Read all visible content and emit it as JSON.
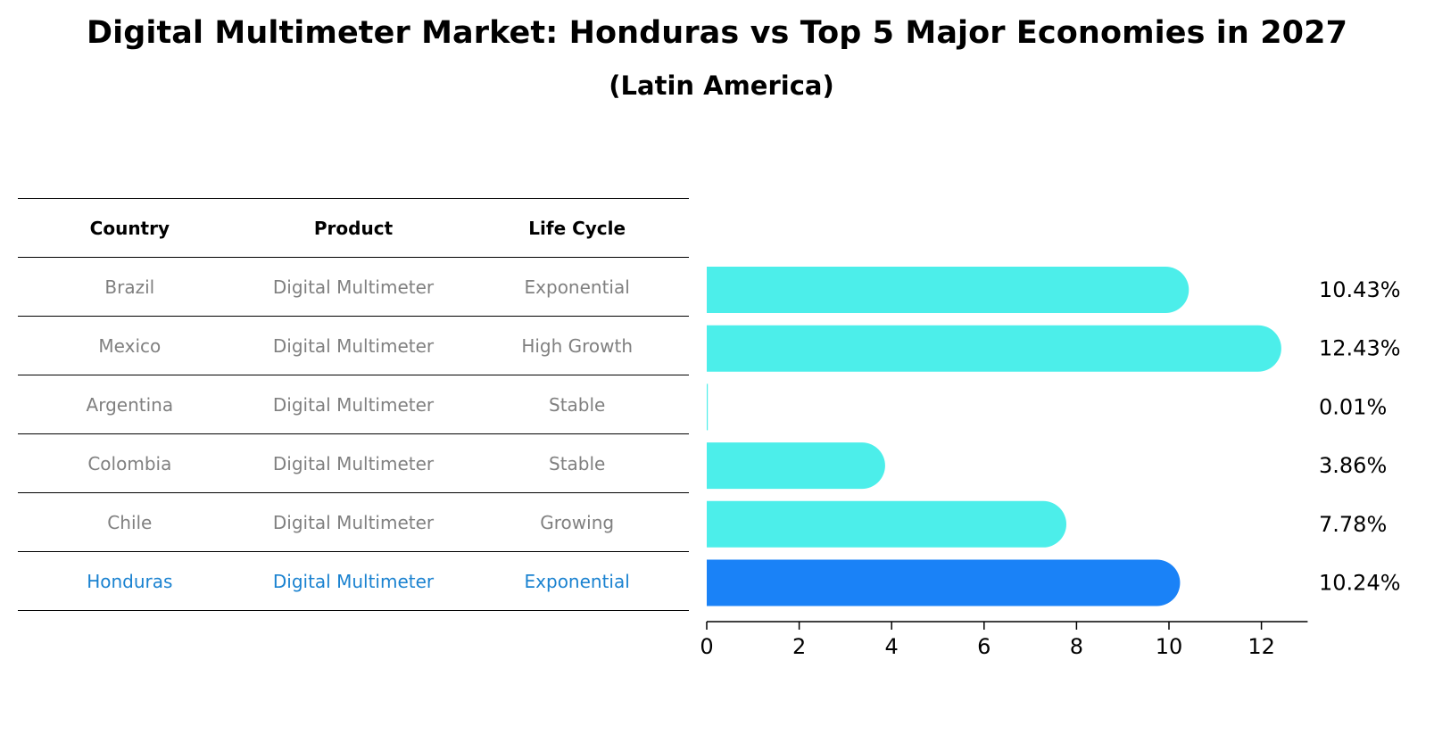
{
  "title": "Digital Multimeter Market: Honduras vs Top 5 Major Economies in 2027",
  "subtitle": "(Latin America)",
  "table": {
    "headers": [
      "Country",
      "Product",
      "Life Cycle"
    ],
    "rows": [
      [
        "Brazil",
        "Digital Multimeter",
        "Exponential"
      ],
      [
        "Mexico",
        "Digital Multimeter",
        "High Growth"
      ],
      [
        "Argentina",
        "Digital Multimeter",
        "Stable"
      ],
      [
        "Colombia",
        "Digital Multimeter",
        "Stable"
      ],
      [
        "Chile",
        "Digital Multimeter",
        "Growing"
      ],
      [
        "Honduras",
        "Digital Multimeter",
        "Exponential"
      ]
    ],
    "highlight_row": "Honduras"
  },
  "chart_data": {
    "type": "bar",
    "orientation": "horizontal",
    "categories": [
      "Brazil",
      "Mexico",
      "Argentina",
      "Colombia",
      "Chile",
      "Honduras"
    ],
    "values": [
      10.43,
      12.43,
      0.01,
      3.86,
      7.78,
      10.24
    ],
    "value_labels": [
      "10.43%",
      "12.43%",
      "0.01%",
      "3.86%",
      "7.78%",
      "10.24%"
    ],
    "xlim": [
      0,
      13
    ],
    "xticks": [
      0,
      2,
      4,
      6,
      8,
      10,
      12
    ],
    "xlabel": "",
    "ylabel": "",
    "grid": false,
    "colors": {
      "default": "#4ceeea",
      "highlight": "#1a82f7"
    },
    "highlight_category": "Honduras"
  }
}
